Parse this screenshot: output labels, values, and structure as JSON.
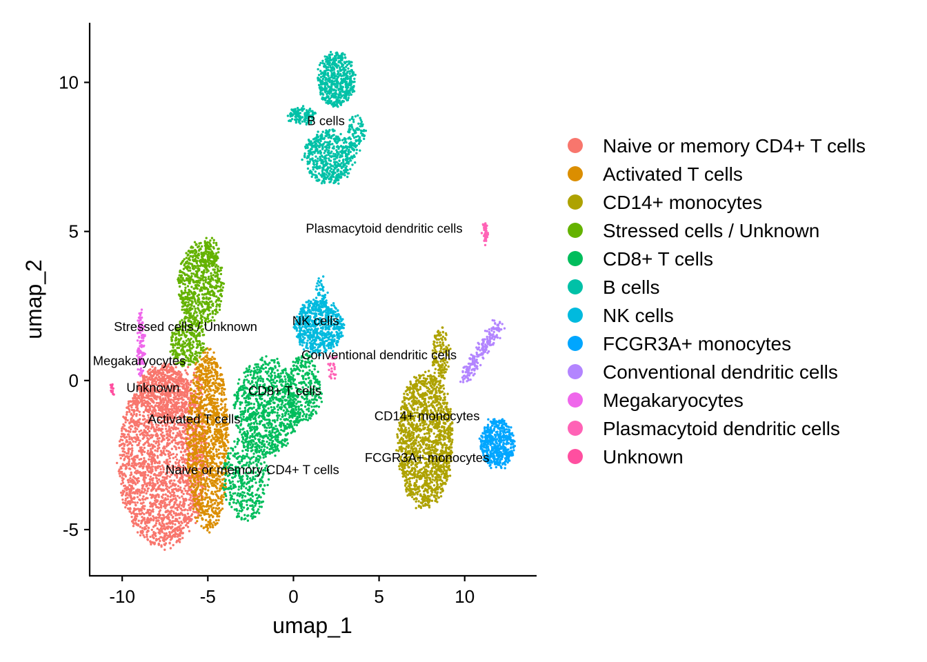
{
  "chart_data": {
    "type": "scatter",
    "xlabel": "umap_1",
    "ylabel": "umap_2",
    "xlim": [
      -11.9,
      14.2
    ],
    "ylim": [
      -6.55,
      12.0
    ],
    "x_ticks": [
      "-10",
      "-5",
      "0",
      "5",
      "10"
    ],
    "x_tick_values": [
      -10,
      -5,
      0,
      5,
      10
    ],
    "y_ticks": [
      "-5",
      "0",
      "5",
      "10"
    ],
    "y_tick_values": [
      -5,
      0,
      5,
      10
    ],
    "grid": false,
    "legend_position": "right",
    "series": [
      {
        "name": "Naive or memory CD4+ T cells",
        "color": "#F8766D",
        "clusters": [
          {
            "cx": -7.6,
            "cy": -2.6,
            "rx": 2.6,
            "ry": 3.0,
            "n": 2400
          },
          {
            "cx": -7.2,
            "cy": -0.3,
            "rx": 1.9,
            "ry": 0.9,
            "n": 400
          }
        ]
      },
      {
        "name": "Activated T cells",
        "color": "#DB8E00",
        "clusters": [
          {
            "cx": -5.0,
            "cy": -2.0,
            "rx": 1.2,
            "ry": 3.1,
            "n": 1200
          }
        ],
        "label": {
          "text": "Activated T cells",
          "x": -5.8,
          "y": -1.3
        }
      },
      {
        "name": "CD14+ monocytes",
        "color": "#AEA200",
        "clusters": [
          {
            "cx": 7.7,
            "cy": -2.0,
            "rx": 1.6,
            "ry": 2.3,
            "n": 1500
          },
          {
            "cx": 8.6,
            "cy": 0.8,
            "rx": 0.5,
            "ry": 1.0,
            "n": 150
          }
        ],
        "label": {
          "text": "CD14+ monocytes",
          "x": 7.8,
          "y": -1.2
        }
      },
      {
        "name": "Stressed cells / Unknown",
        "color": "#64B200",
        "clusters": [
          {
            "cx": -5.4,
            "cy": 3.2,
            "rx": 1.3,
            "ry": 1.4,
            "n": 650
          },
          {
            "cx": -6.2,
            "cy": 1.3,
            "rx": 1.0,
            "ry": 0.8,
            "n": 280
          },
          {
            "cx": -4.9,
            "cy": 4.3,
            "rx": 0.5,
            "ry": 0.5,
            "n": 80
          }
        ],
        "label": {
          "text": "Stressed cells / Unknown",
          "x": -6.3,
          "y": 1.8
        }
      },
      {
        "name": "CD8+ T cells",
        "color": "#00BD5C",
        "clusters": [
          {
            "cx": -1.6,
            "cy": -0.9,
            "rx": 1.9,
            "ry": 1.6,
            "n": 900
          },
          {
            "cx": -2.8,
            "cy": -3.3,
            "rx": 1.3,
            "ry": 1.4,
            "n": 380
          },
          {
            "cx": 0.6,
            "cy": -0.3,
            "rx": 1.0,
            "ry": 1.2,
            "n": 300
          }
        ],
        "label": {
          "text": "CD8+ T cells",
          "x": -0.5,
          "y": -0.35
        }
      },
      {
        "name": "B cells",
        "color": "#00C1A7",
        "clusters": [
          {
            "cx": 2.5,
            "cy": 10.1,
            "rx": 1.1,
            "ry": 0.9,
            "n": 550
          },
          {
            "cx": 2.1,
            "cy": 7.5,
            "rx": 1.5,
            "ry": 0.9,
            "n": 520
          },
          {
            "cx": 0.5,
            "cy": 8.9,
            "rx": 0.8,
            "ry": 0.3,
            "n": 120
          },
          {
            "cx": 3.7,
            "cy": 8.3,
            "rx": 0.5,
            "ry": 0.6,
            "n": 90
          }
        ],
        "label": {
          "text": "B cells",
          "x": 1.9,
          "y": 8.7
        }
      },
      {
        "name": "NK cells",
        "color": "#00BADE",
        "clusters": [
          {
            "cx": 1.5,
            "cy": 1.8,
            "rx": 1.4,
            "ry": 0.9,
            "n": 650
          },
          {
            "cx": 1.7,
            "cy": 3.0,
            "rx": 0.35,
            "ry": 0.5,
            "n": 40
          }
        ],
        "label": {
          "text": "NK cells",
          "x": 1.3,
          "y": 2.0
        }
      },
      {
        "name": "FCGR3A+ monocytes",
        "color": "#00A6FF",
        "clusters": [
          {
            "cx": 11.9,
            "cy": -2.1,
            "rx": 1.0,
            "ry": 0.8,
            "n": 520
          }
        ],
        "label": {
          "text": "FCGR3A+ monocytes",
          "x": 7.8,
          "y": -2.6
        }
      },
      {
        "name": "Conventional dendritic cells",
        "color": "#B385FF",
        "clusters": [
          {
            "cx": 11.0,
            "cy": 1.0,
            "rx": 1.0,
            "ry": 0.9,
            "n": 220,
            "diag": true
          }
        ],
        "label": {
          "text": "Conventional dendritic cells",
          "x": 5.0,
          "y": 0.85
        }
      },
      {
        "name": "Megakaryocytes",
        "color": "#EF67EB",
        "clusters": [
          {
            "cx": -8.9,
            "cy": 1.2,
            "rx": 0.2,
            "ry": 1.1,
            "n": 110
          }
        ],
        "label": {
          "text": "Megakaryocytes",
          "x": -9.0,
          "y": 0.65
        }
      },
      {
        "name": "Plasmacytoid dendritic cells",
        "color": "#FF63B6",
        "clusters": [
          {
            "cx": 11.2,
            "cy": 5.0,
            "rx": 0.12,
            "ry": 0.35,
            "n": 45
          },
          {
            "cx": 2.3,
            "cy": 0.4,
            "rx": 0.25,
            "ry": 0.4,
            "n": 25
          }
        ],
        "label": {
          "text": "Plasmacytoid dendritic cells",
          "x": 5.3,
          "y": 5.1
        }
      },
      {
        "name": "Unknown",
        "color": "#FF4FA0",
        "clusters": [
          {
            "cx": -10.6,
            "cy": -0.3,
            "rx": 0.1,
            "ry": 0.2,
            "n": 15
          }
        ],
        "label": {
          "text": "Unknown",
          "x": -8.2,
          "y": -0.25
        }
      }
    ],
    "extra_labels": [
      {
        "text": "Naive or memory CD4+ T cells",
        "x": -2.4,
        "y": -3.0
      }
    ]
  }
}
